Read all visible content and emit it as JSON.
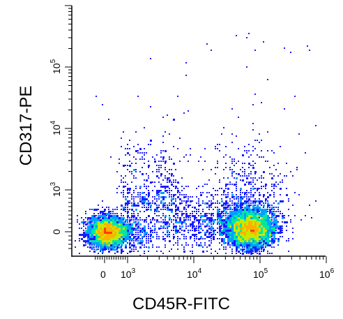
{
  "chart_data": {
    "type": "scatter",
    "subtype": "flow-cytometry-density-dot-plot",
    "xlabel": "CD45R-FITC",
    "ylabel": "CD317-PE",
    "x_scale": "biexponential (log above 10^3)",
    "y_scale": "biexponential (log above 10^3)",
    "x_tick_labels": [
      {
        "base": "0",
        "exp": ""
      },
      {
        "base": "10",
        "exp": "3"
      },
      {
        "base": "10",
        "exp": "4"
      },
      {
        "base": "10",
        "exp": "5"
      },
      {
        "base": "10",
        "exp": "6"
      }
    ],
    "y_tick_labels": [
      {
        "base": "0",
        "exp": ""
      },
      {
        "base": "10",
        "exp": "3"
      },
      {
        "base": "10",
        "exp": "4"
      },
      {
        "base": "10",
        "exp": "5"
      }
    ],
    "x_ticks": [
      0,
      1000,
      10000,
      100000,
      1000000
    ],
    "y_ticks": [
      0,
      1000,
      10000,
      100000
    ],
    "xlim": [
      -400,
      1000000
    ],
    "ylim": [
      -400,
      1000000
    ],
    "grid": false,
    "populations": [
      {
        "x_center": 100,
        "y_center": 0,
        "relative_density": 0.9
      },
      {
        "x_center": 70000,
        "y_center": 80,
        "relative_density": 1.0
      },
      {
        "x_center": 1500,
        "y_center": 4000,
        "relative_density": 0.15
      }
    ],
    "density_colors": [
      "#1a1aff",
      "#00a0ff",
      "#00e8a0",
      "#c8e800",
      "#ffb000",
      "#ff4000"
    ]
  }
}
